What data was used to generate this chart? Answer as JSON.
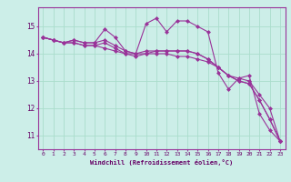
{
  "xlabel": "Windchill (Refroidissement éolien,°C)",
  "background_color": "#cceee8",
  "grid_color": "#aaddcc",
  "line_color": "#993399",
  "x_values": [
    0,
    1,
    2,
    3,
    4,
    5,
    6,
    7,
    8,
    9,
    10,
    11,
    12,
    13,
    14,
    15,
    16,
    17,
    18,
    19,
    20,
    21,
    22,
    23
  ],
  "series": [
    [
      14.6,
      14.5,
      14.4,
      14.5,
      14.4,
      14.4,
      14.9,
      14.6,
      14.1,
      14.0,
      15.1,
      15.3,
      14.8,
      15.2,
      15.2,
      15.0,
      14.8,
      13.3,
      12.7,
      13.1,
      13.2,
      11.8,
      11.2,
      10.8
    ],
    [
      14.6,
      14.5,
      14.4,
      14.5,
      14.4,
      14.4,
      14.5,
      14.3,
      14.1,
      14.0,
      14.1,
      14.1,
      14.1,
      14.1,
      14.1,
      14.0,
      13.8,
      13.5,
      13.2,
      13.1,
      13.0,
      12.5,
      12.0,
      10.8
    ],
    [
      14.6,
      14.5,
      14.4,
      14.4,
      14.3,
      14.3,
      14.2,
      14.1,
      14.0,
      14.0,
      14.0,
      14.0,
      14.0,
      13.9,
      13.9,
      13.8,
      13.7,
      13.5,
      13.2,
      13.0,
      12.9,
      12.3,
      11.6,
      10.8
    ],
    [
      14.6,
      14.5,
      14.4,
      14.4,
      14.3,
      14.3,
      14.4,
      14.2,
      14.0,
      13.9,
      14.0,
      14.1,
      14.1,
      14.1,
      14.1,
      14.0,
      13.8,
      13.5,
      13.2,
      13.0,
      12.9,
      12.3,
      11.6,
      10.8
    ]
  ],
  "ylim": [
    10.5,
    15.7
  ],
  "yticks": [
    11,
    12,
    13,
    14,
    15
  ],
  "xlim": [
    -0.5,
    23.5
  ]
}
